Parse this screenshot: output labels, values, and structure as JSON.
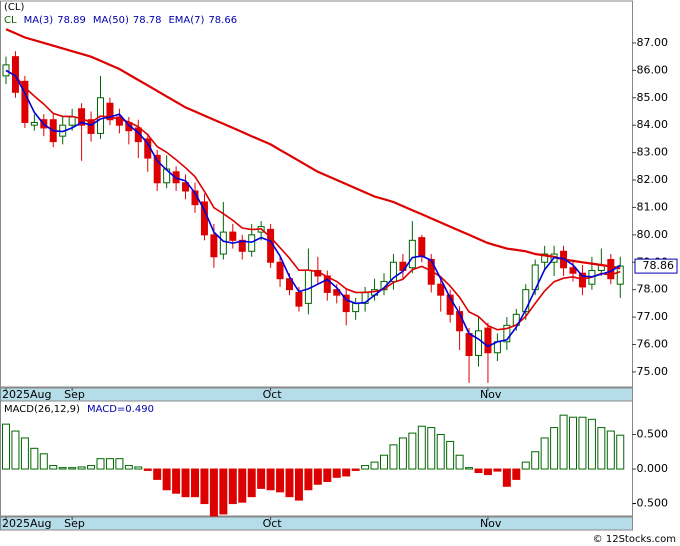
{
  "chart_data": [
    {
      "type": "candlestick",
      "title": "(CL)",
      "symbol": "CL",
      "categories": [
        "2025Aug",
        null,
        null,
        null,
        null,
        null,
        null,
        "Sep",
        null,
        null,
        null,
        null,
        null,
        null,
        null,
        null,
        null,
        null,
        null,
        null,
        null,
        null,
        null,
        null,
        null,
        null,
        null,
        null,
        "Oct",
        null,
        null,
        null,
        null,
        null,
        null,
        null,
        null,
        null,
        null,
        null,
        null,
        null,
        null,
        null,
        null,
        null,
        null,
        null,
        null,
        null,
        null,
        "Nov",
        null,
        null,
        null,
        null,
        null,
        null,
        null,
        null,
        null,
        null,
        null,
        null,
        null,
        null
      ],
      "open": [
        85.8,
        86.5,
        85.6,
        84.0,
        84.2,
        84.2,
        83.6,
        84.0,
        84.6,
        84.2,
        83.7,
        84.8,
        84.3,
        84.1,
        83.9,
        83.5,
        82.9,
        81.9,
        82.3,
        81.9,
        81.6,
        81.2,
        80.0,
        79.3,
        80.1,
        79.8,
        79.4,
        80.1,
        80.2,
        79.0,
        78.4,
        77.9,
        77.5,
        78.7,
        78.5,
        78.0,
        77.8,
        77.2,
        77.5,
        77.8,
        78.0,
        78.3,
        79.0,
        78.8,
        79.9,
        79.1,
        78.2,
        77.8,
        77.2,
        76.4,
        75.6,
        76.6,
        75.7,
        76.1,
        76.7,
        77.2,
        78.0,
        79.0,
        79.0,
        79.4,
        78.8,
        78.6,
        78.2,
        78.7,
        79.1,
        78.2
      ],
      "high": [
        86.5,
        86.7,
        85.8,
        84.4,
        84.4,
        84.4,
        84.3,
        84.6,
        84.8,
        84.5,
        85.8,
        85.0,
        84.6,
        84.3,
        84.2,
        83.7,
        83.1,
        82.9,
        82.5,
        82.2,
        81.9,
        81.5,
        80.4,
        81.2,
        80.4,
        80.0,
        80.4,
        80.5,
        80.4,
        79.2,
        78.6,
        78.1,
        79.5,
        79.2,
        78.7,
        78.2,
        78.0,
        77.7,
        78.1,
        78.4,
        78.6,
        79.3,
        79.3,
        80.5,
        80.0,
        79.3,
        78.4,
        78.0,
        77.4,
        76.6,
        77.0,
        76.8,
        76.4,
        77.0,
        77.3,
        78.2,
        79.1,
        79.6,
        79.6,
        79.6,
        79.1,
        78.9,
        79.2,
        79.5,
        79.3,
        79.2
      ],
      "low": [
        85.5,
        85.0,
        83.9,
        83.8,
        83.6,
        83.2,
        83.3,
        83.8,
        82.7,
        83.4,
        83.5,
        84.0,
        83.7,
        83.3,
        82.8,
        82.3,
        81.6,
        81.7,
        81.6,
        81.3,
        80.8,
        79.8,
        78.8,
        79.1,
        79.5,
        79.1,
        79.2,
        79.8,
        78.8,
        78.1,
        77.8,
        77.2,
        77.1,
        78.2,
        77.6,
        77.5,
        76.7,
        76.9,
        77.2,
        77.6,
        77.8,
        78.0,
        78.4,
        78.6,
        79.0,
        77.9,
        77.2,
        76.8,
        75.8,
        74.6,
        75.2,
        74.6,
        75.4,
        75.8,
        76.5,
        76.9,
        77.8,
        78.7,
        78.5,
        78.5,
        78.3,
        77.8,
        78.0,
        78.5,
        78.2,
        77.7
      ],
      "close": [
        86.2,
        85.2,
        84.1,
        84.1,
        83.9,
        83.4,
        84.0,
        84.3,
        84.0,
        83.7,
        85.0,
        84.2,
        84.0,
        83.8,
        83.4,
        82.8,
        81.9,
        82.4,
        81.9,
        81.6,
        81.1,
        80.0,
        79.2,
        80.1,
        79.8,
        79.4,
        80.0,
        80.3,
        79.0,
        78.4,
        78.0,
        77.4,
        78.7,
        78.5,
        77.9,
        77.8,
        77.2,
        77.5,
        77.9,
        78.0,
        78.3,
        79.0,
        78.7,
        79.8,
        79.2,
        78.2,
        77.8,
        77.1,
        76.5,
        75.6,
        76.5,
        75.7,
        76.1,
        76.7,
        77.1,
        78.0,
        78.9,
        79.3,
        79.3,
        78.8,
        78.6,
        78.1,
        78.7,
        78.9,
        78.4,
        78.86
      ],
      "up_color": "#006600",
      "down_color": "#dd0000",
      "series": [
        {
          "name": "MA(50)",
          "color": "#dd0000",
          "legend_value": 78.78,
          "values": [
            87.5,
            87.35,
            87.2,
            87.1,
            87.0,
            86.9,
            86.8,
            86.7,
            86.6,
            86.5,
            86.35,
            86.2,
            86.05,
            85.85,
            85.65,
            85.45,
            85.25,
            85.05,
            84.85,
            84.65,
            84.5,
            84.35,
            84.2,
            84.05,
            83.9,
            83.75,
            83.6,
            83.45,
            83.3,
            83.1,
            82.9,
            82.7,
            82.5,
            82.3,
            82.15,
            82.0,
            81.85,
            81.7,
            81.55,
            81.4,
            81.3,
            81.2,
            81.05,
            80.9,
            80.75,
            80.6,
            80.45,
            80.3,
            80.15,
            80.0,
            79.85,
            79.7,
            79.6,
            79.5,
            79.45,
            79.4,
            79.3,
            79.25,
            79.2,
            79.1,
            79.05,
            79.0,
            78.95,
            78.9,
            78.85,
            78.78
          ]
        },
        {
          "name": "EMA(7)",
          "color": "#dd0000",
          "legend_value": 78.66,
          "values": [
            86.0,
            85.8,
            85.38,
            85.06,
            84.77,
            84.43,
            84.32,
            84.32,
            84.24,
            84.1,
            84.33,
            84.3,
            84.22,
            84.12,
            83.94,
            83.65,
            83.22,
            83.01,
            82.74,
            82.45,
            82.12,
            81.59,
            80.99,
            80.77,
            80.53,
            80.25,
            80.19,
            80.22,
            79.91,
            79.53,
            79.15,
            78.71,
            78.71,
            78.66,
            78.47,
            78.3,
            78.03,
            77.9,
            77.9,
            77.93,
            78.02,
            78.27,
            78.38,
            78.73,
            78.85,
            78.69,
            78.47,
            78.13,
            77.72,
            77.19,
            77.02,
            76.69,
            76.54,
            76.58,
            76.71,
            77.03,
            77.5,
            77.95,
            78.29,
            78.42,
            78.47,
            78.38,
            78.46,
            78.59,
            78.54,
            78.66
          ]
        },
        {
          "name": "MA(3)",
          "color": "#0000dd",
          "legend_value": 78.89,
          "values": [
            86.0,
            85.8,
            85.17,
            84.47,
            84.03,
            83.8,
            83.77,
            83.9,
            84.1,
            84.0,
            84.23,
            84.3,
            84.4,
            84.0,
            83.73,
            83.33,
            82.7,
            82.37,
            82.07,
            81.97,
            81.53,
            80.9,
            80.1,
            79.77,
            79.7,
            79.77,
            79.73,
            79.9,
            79.77,
            79.23,
            78.47,
            77.93,
            78.03,
            78.2,
            78.37,
            78.07,
            77.63,
            77.5,
            77.53,
            77.8,
            78.07,
            78.43,
            78.67,
            79.17,
            79.23,
            79.07,
            78.4,
            77.7,
            77.13,
            76.4,
            76.2,
            75.93,
            76.1,
            76.17,
            76.63,
            77.27,
            78.0,
            78.73,
            79.17,
            79.13,
            78.9,
            78.5,
            78.47,
            78.57,
            78.67,
            78.89
          ]
        }
      ],
      "ylim": [
        74.45,
        88.53
      ],
      "yticks": [
        {
          "value": 75,
          "label": "75.00"
        },
        {
          "value": 76,
          "label": "76.00"
        },
        {
          "value": 77,
          "label": "77.00"
        },
        {
          "value": 78,
          "label": "78.00"
        },
        {
          "value": 79,
          "label": "79.00"
        },
        {
          "value": 80,
          "label": "80.00"
        },
        {
          "value": 81,
          "label": "81.00"
        },
        {
          "value": 82,
          "label": "82.00"
        },
        {
          "value": 83,
          "label": "83.00"
        },
        {
          "value": 84,
          "label": "84.00"
        },
        {
          "value": 85,
          "label": "85.00"
        },
        {
          "value": 86,
          "label": "86.00"
        },
        {
          "value": 87,
          "label": "87.00"
        }
      ]
    },
    {
      "type": "bar",
      "title": "MACD(26,12,9)",
      "legend_label": "MACD=0.490",
      "categories": [
        "2025Aug",
        null,
        null,
        null,
        null,
        null,
        null,
        "Sep",
        null,
        null,
        null,
        null,
        null,
        null,
        null,
        null,
        null,
        null,
        null,
        null,
        null,
        null,
        null,
        null,
        null,
        null,
        null,
        null,
        "Oct",
        null,
        null,
        null,
        null,
        null,
        null,
        null,
        null,
        null,
        null,
        null,
        null,
        null,
        null,
        null,
        null,
        null,
        null,
        null,
        null,
        null,
        null,
        "Nov",
        null,
        null,
        null,
        null,
        null,
        null,
        null,
        null,
        null,
        null,
        null,
        null,
        null,
        null
      ],
      "values": [
        0.65,
        0.55,
        0.45,
        0.3,
        0.22,
        0.05,
        0.02,
        0.02,
        0.03,
        0.05,
        0.15,
        0.15,
        0.15,
        0.05,
        0.03,
        -0.02,
        -0.15,
        -0.3,
        -0.35,
        -0.4,
        -0.4,
        -0.5,
        -0.68,
        -0.65,
        -0.5,
        -0.48,
        -0.4,
        -0.28,
        -0.3,
        -0.33,
        -0.4,
        -0.45,
        -0.3,
        -0.22,
        -0.18,
        -0.12,
        -0.1,
        -0.02,
        0.05,
        0.1,
        0.2,
        0.35,
        0.45,
        0.52,
        0.62,
        0.6,
        0.5,
        0.4,
        0.2,
        0.02,
        -0.05,
        -0.08,
        -0.03,
        -0.25,
        -0.15,
        0.1,
        0.25,
        0.45,
        0.6,
        0.78,
        0.75,
        0.75,
        0.72,
        0.6,
        0.55,
        0.49
      ],
      "up_color": "#006600",
      "down_color": "#dd0000",
      "ylim": [
        -0.68,
        0.985
      ],
      "yticks": [
        {
          "value": 0.5,
          "label": "0.500"
        },
        {
          "value": 0,
          "label": "0.000"
        },
        {
          "value": -0.5,
          "label": "-0.500"
        }
      ]
    }
  ],
  "footer": "© 12Stocks.com"
}
